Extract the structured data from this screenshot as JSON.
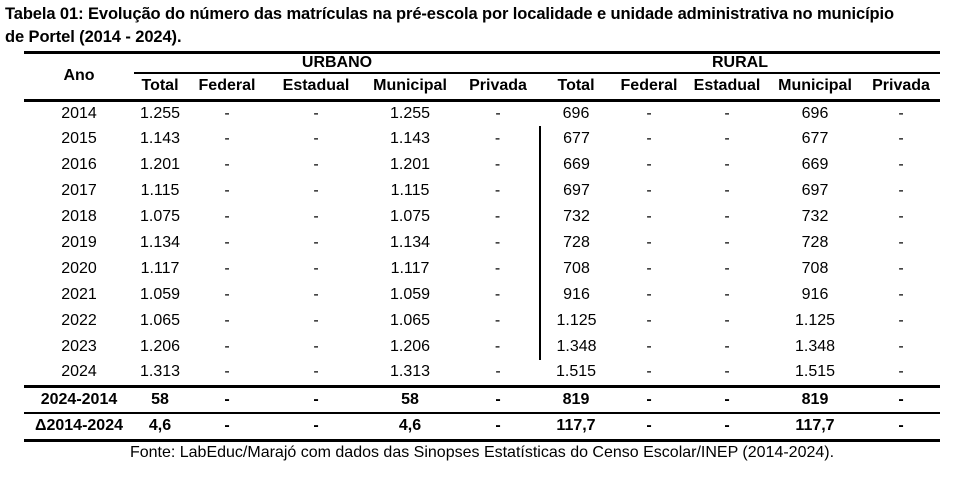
{
  "title": {
    "line1": "Tabela 01: Evolução do número das matrículas na pré-escola por localidade e unidade administrativa no município",
    "line2": "de Portel (2014 - 2024)."
  },
  "table": {
    "year_header": "Ano",
    "groups": [
      {
        "label": "URBANO",
        "columns": [
          "Total",
          "Federal",
          "Estadual",
          "Municipal",
          "Privada"
        ]
      },
      {
        "label": "RURAL",
        "columns": [
          "Total",
          "Federal",
          "Estadual",
          "Municipal",
          "Privada"
        ]
      }
    ],
    "rows": [
      {
        "year": "2014",
        "urbano": [
          "1.255",
          "-",
          "-",
          "1.255",
          "-"
        ],
        "rural": [
          "696",
          "-",
          "-",
          "696",
          "-"
        ]
      },
      {
        "year": "2015",
        "urbano": [
          "1.143",
          "-",
          "-",
          "1.143",
          "-"
        ],
        "rural": [
          "677",
          "-",
          "-",
          "677",
          "-"
        ]
      },
      {
        "year": "2016",
        "urbano": [
          "1.201",
          "-",
          "-",
          "1.201",
          "-"
        ],
        "rural": [
          "669",
          "-",
          "-",
          "669",
          "-"
        ]
      },
      {
        "year": "2017",
        "urbano": [
          "1.115",
          "-",
          "-",
          "1.115",
          "-"
        ],
        "rural": [
          "697",
          "-",
          "-",
          "697",
          "-"
        ]
      },
      {
        "year": "2018",
        "urbano": [
          "1.075",
          "-",
          "-",
          "1.075",
          "-"
        ],
        "rural": [
          "732",
          "-",
          "-",
          "732",
          "-"
        ]
      },
      {
        "year": "2019",
        "urbano": [
          "1.134",
          "-",
          "-",
          "1.134",
          "-"
        ],
        "rural": [
          "728",
          "-",
          "-",
          "728",
          "-"
        ]
      },
      {
        "year": "2020",
        "urbano": [
          "1.117",
          "-",
          "-",
          "1.117",
          "-"
        ],
        "rural": [
          "708",
          "-",
          "-",
          "708",
          "-"
        ]
      },
      {
        "year": "2021",
        "urbano": [
          "1.059",
          "-",
          "-",
          "1.059",
          "-"
        ],
        "rural": [
          "916",
          "-",
          "-",
          "916",
          "-"
        ]
      },
      {
        "year": "2022",
        "urbano": [
          "1.065",
          "-",
          "-",
          "1.065",
          "-"
        ],
        "rural": [
          "1.125",
          "-",
          "-",
          "1.125",
          "-"
        ]
      },
      {
        "year": "2023",
        "urbano": [
          "1.206",
          "-",
          "-",
          "1.206",
          "-"
        ],
        "rural": [
          "1.348",
          "-",
          "-",
          "1.348",
          "-"
        ]
      },
      {
        "year": "2024",
        "urbano": [
          "1.313",
          "-",
          "-",
          "1.313",
          "-"
        ],
        "rural": [
          "1.515",
          "-",
          "-",
          "1.515",
          "-"
        ]
      }
    ],
    "summary_rows": [
      {
        "label": "2024-2014",
        "urbano": [
          "58",
          "-",
          "-",
          "58",
          "-"
        ],
        "rural": [
          "819",
          "-",
          "-",
          "819",
          "-"
        ]
      },
      {
        "label": "Δ2014-2024",
        "urbano": [
          "4,6",
          "-",
          "-",
          "4,6",
          "-"
        ],
        "rural": [
          "117,7",
          "-",
          "-",
          "117,7",
          "-"
        ]
      }
    ]
  },
  "source": "Fonte: LabEduc/Marajó com dados das Sinopses Estatísticas do Censo Escolar/INEP (2014-2024)."
}
